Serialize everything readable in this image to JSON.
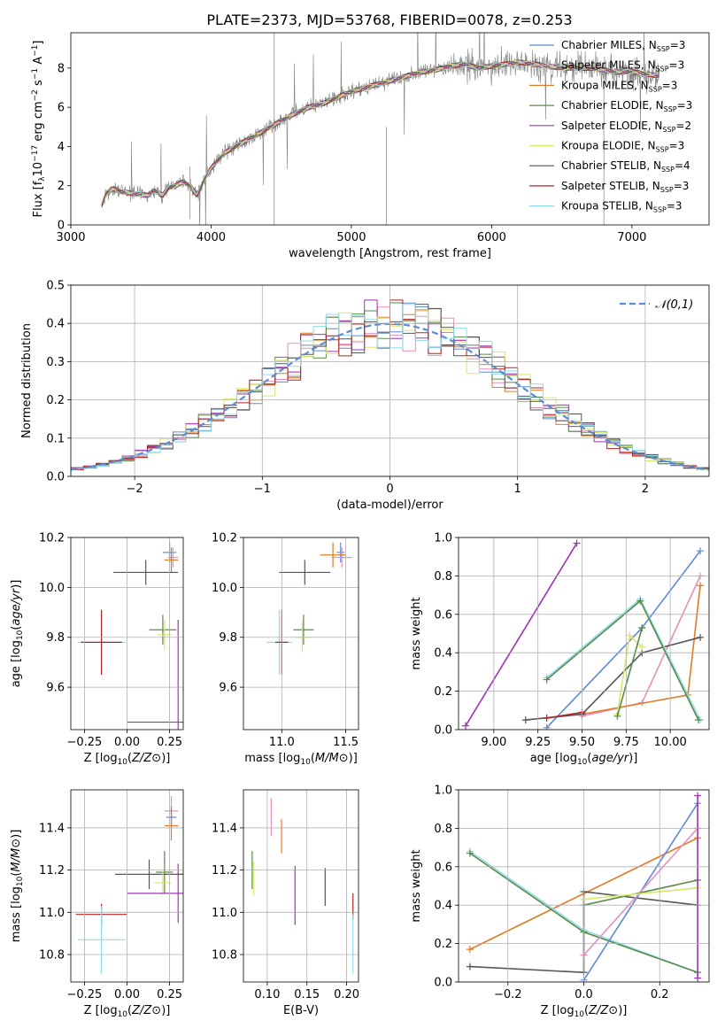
{
  "figure_title": "PLATE=2373, MJD=53768, FIBERID=0078, z=0.253",
  "series_colors": {
    "Chabrier MILES": "#5b8bd5",
    "Salpeter MILES": "#e68fbf",
    "Kroupa MILES": "#e07b27",
    "Chabrier ELODIE": "#5a8a4a",
    "Salpeter ELODIE": "#9b35b0",
    "Kroupa ELODIE": "#d7e86a",
    "Chabrier STELIB": "#555555",
    "Salpeter STELIB": "#b22222",
    "Kroupa STELIB": "#8fdde6"
  },
  "chart_data": [
    {
      "id": "spectrum",
      "type": "line",
      "title": "PLATE=2373, MJD=53768, FIBERID=0078, z=0.253",
      "xlabel": "wavelength [Angstrom, rest frame]",
      "ylabel": "Flux [f_λ 10^-17 erg cm^-2 s^-1 A^-1]",
      "xlim": [
        3000,
        7550
      ],
      "ylim": [
        0,
        9.8
      ],
      "xticks": [
        "3000",
        "4000",
        "5000",
        "6000",
        "7000"
      ],
      "yticks": [
        "0",
        "2",
        "4",
        "6",
        "8"
      ],
      "grid": false,
      "legend_position": "top-right",
      "data_color": "#808080",
      "data_label": "",
      "data": [
        [
          3220,
          1.0
        ],
        [
          3250,
          1.6
        ],
        [
          3300,
          1.85
        ],
        [
          3350,
          1.7
        ],
        [
          3400,
          1.65
        ],
        [
          3450,
          1.6
        ],
        [
          3500,
          1.55
        ],
        [
          3550,
          1.5
        ],
        [
          3600,
          1.8
        ],
        [
          3650,
          1.5
        ],
        [
          3700,
          1.9
        ],
        [
          3750,
          2.0
        ],
        [
          3800,
          2.2
        ],
        [
          3850,
          2.0
        ],
        [
          3900,
          1.5
        ],
        [
          3950,
          2.3
        ],
        [
          4000,
          2.9
        ],
        [
          4050,
          3.3
        ],
        [
          4100,
          3.7
        ],
        [
          4200,
          4.1
        ],
        [
          4300,
          4.5
        ],
        [
          4400,
          4.9
        ],
        [
          4500,
          5.3
        ],
        [
          4600,
          5.7
        ],
        [
          4700,
          6.0
        ],
        [
          4800,
          6.2
        ],
        [
          4900,
          6.5
        ],
        [
          5000,
          6.8
        ],
        [
          5100,
          7.0
        ],
        [
          5200,
          7.2
        ],
        [
          5300,
          7.4
        ],
        [
          5400,
          7.6
        ],
        [
          5500,
          7.8
        ],
        [
          5600,
          7.9
        ],
        [
          5700,
          8.1
        ],
        [
          5800,
          8.2
        ],
        [
          5900,
          8.0
        ],
        [
          6000,
          8.1
        ],
        [
          6100,
          8.2
        ],
        [
          6200,
          8.3
        ],
        [
          6300,
          8.2
        ],
        [
          6400,
          8.1
        ],
        [
          6500,
          8.0
        ],
        [
          6600,
          8.0
        ],
        [
          6700,
          8.0
        ],
        [
          6800,
          7.9
        ],
        [
          6900,
          7.8
        ],
        [
          7000,
          7.8
        ],
        [
          7100,
          7.7
        ],
        [
          7200,
          7.6
        ]
      ],
      "legend": [
        {
          "label": "Chabrier MILES, N_SSP=3",
          "text": "Chabrier MILES, N",
          "sub": "SSP",
          "tail": "=3"
        },
        {
          "label": "Salpeter MILES, N_SSP=3",
          "text": "Salpeter MILES, N",
          "sub": "SSP",
          "tail": "=3"
        },
        {
          "label": "Kroupa MILES, N_SSP=3",
          "text": "Kroupa MILES, N",
          "sub": "SSP",
          "tail": "=3"
        },
        {
          "label": "Chabrier ELODIE, N_SSP=3",
          "text": "Chabrier ELODIE, N",
          "sub": "SSP",
          "tail": "=3"
        },
        {
          "label": "Salpeter ELODIE, N_SSP=2",
          "text": "Salpeter ELODIE, N",
          "sub": "SSP",
          "tail": "=2"
        },
        {
          "label": "Kroupa ELODIE, N_SSP=3",
          "text": "Kroupa ELODIE, N",
          "sub": "SSP",
          "tail": "=3"
        },
        {
          "label": "Chabrier STELIB, N_SSP=4",
          "text": "Chabrier STELIB, N",
          "sub": "SSP",
          "tail": "=4"
        },
        {
          "label": "Salpeter STELIB, N_SSP=3",
          "text": "Salpeter STELIB, N",
          "sub": "SSP",
          "tail": "=3"
        },
        {
          "label": "Kroupa STELIB, N_SSP=3",
          "text": "Kroupa STELIB, N",
          "sub": "SSP",
          "tail": "=3"
        }
      ]
    },
    {
      "id": "residuals",
      "type": "histogram",
      "xlabel": "(data-model)/error",
      "ylabel": "Normed distribution",
      "xlim": [
        -2.5,
        2.5
      ],
      "ylim": [
        0,
        0.5
      ],
      "xticks": [
        "−2",
        "−1",
        "0",
        "1",
        "2"
      ],
      "yticks": [
        "0.0",
        "0.1",
        "0.2",
        "0.3",
        "0.4",
        "0.5"
      ],
      "grid": true,
      "legend_position": "top-right",
      "reference_label": "𝒩(0,1)",
      "reference_color": "#5b8bd5"
    },
    {
      "id": "age-vs-Z",
      "type": "errorbar",
      "xlabel": "Z [log10(Z/Z⊙)]",
      "ylabel": "age [log10(age/yr)]",
      "xlim": [
        -0.33,
        0.33
      ],
      "ylim": [
        9.43,
        10.2
      ],
      "xticks": [
        "−0.25",
        "0.00",
        "0.25"
      ],
      "yticks": [
        "9.6",
        "9.8",
        "10.0",
        "10.2"
      ],
      "grid": true,
      "points": [
        {
          "series": "Chabrier MILES",
          "x": 0.25,
          "y": 10.14,
          "xerr": 0.04,
          "yerr": 0.04
        },
        {
          "series": "Salpeter MILES",
          "x": 0.27,
          "y": 10.12,
          "xerr": 0.03,
          "yerr": 0.04
        },
        {
          "series": "Kroupa MILES",
          "x": 0.26,
          "y": 10.11,
          "xerr": 0.04,
          "yerr": 0.05
        },
        {
          "series": "Chabrier STELIB",
          "x": 0.11,
          "y": 10.06,
          "xerr": 0.19,
          "yerr": 0.05
        },
        {
          "series": "Chabrier ELODIE",
          "x": 0.21,
          "y": 9.83,
          "xerr": 0.08,
          "yerr": 0.06
        },
        {
          "series": "Kroupa ELODIE",
          "x": 0.22,
          "y": 9.81,
          "xerr": 0.04,
          "yerr": 0.06
        },
        {
          "series": "Kroupa STELIB",
          "x": -0.15,
          "y": 9.78,
          "xerr": 0.14,
          "yerr": 0.13
        },
        {
          "series": "Salpeter STELIB",
          "x": -0.15,
          "y": 9.78,
          "xerr": 0.12,
          "yerr": 0.13
        },
        {
          "series": "Salpeter ELODIE",
          "x": 0.3,
          "y": 9.46,
          "xerr": 0.3,
          "yerr": 0.41
        }
      ]
    },
    {
      "id": "age-vs-mass",
      "type": "errorbar",
      "xlabel": "mass [log10(M/M⊙)]",
      "ylabel": "",
      "xlim": [
        10.7,
        11.6
      ],
      "ylim": [
        9.43,
        10.2
      ],
      "xticks": [
        "11.0",
        "11.5"
      ],
      "yticks": [
        "9.6",
        "9.8",
        "10.0",
        "10.2"
      ],
      "grid": true,
      "points": [
        {
          "series": "Chabrier MILES",
          "x": 11.46,
          "y": 10.14,
          "xerr": 0.03,
          "yerr": 0.04
        },
        {
          "series": "Salpeter MILES",
          "x": 11.47,
          "y": 10.12,
          "xerr": 0.08,
          "yerr": 0.04
        },
        {
          "series": "Kroupa MILES",
          "x": 11.4,
          "y": 10.13,
          "xerr": 0.1,
          "yerr": 0.05
        },
        {
          "series": "Chabrier STELIB",
          "x": 11.18,
          "y": 10.06,
          "xerr": 0.2,
          "yerr": 0.05
        },
        {
          "series": "Chabrier ELODIE",
          "x": 11.17,
          "y": 9.83,
          "xerr": 0.08,
          "yerr": 0.06
        },
        {
          "series": "Kroupa ELODIE",
          "x": 11.16,
          "y": 9.8,
          "xerr": 0.06,
          "yerr": 0.06
        },
        {
          "series": "Kroupa STELIB",
          "x": 10.98,
          "y": 9.78,
          "xerr": 0.1,
          "yerr": 0.13
        },
        {
          "series": "Salpeter STELIB",
          "x": 11.0,
          "y": 9.78,
          "xerr": 0.05,
          "yerr": 0.13
        }
      ]
    },
    {
      "id": "weight-vs-age",
      "type": "line",
      "xlabel": "age [log10(age/yr)]",
      "ylabel": "mass weight",
      "xlim": [
        8.8,
        10.22
      ],
      "ylim": [
        0,
        1.0
      ],
      "xticks": [
        "9.00",
        "9.25",
        "9.50",
        "9.75",
        "10.00"
      ],
      "yticks": [
        "0.0",
        "0.2",
        "0.4",
        "0.6",
        "0.8",
        "1.0"
      ],
      "grid": true,
      "series": [
        {
          "name": "Salpeter ELODIE",
          "points": [
            [
              8.84,
              0.02
            ],
            [
              9.47,
              0.97
            ]
          ]
        },
        {
          "name": "Chabrier MILES",
          "points": [
            [
              9.3,
              0.01
            ],
            [
              9.84,
              0.53
            ],
            [
              10.17,
              0.93
            ]
          ]
        },
        {
          "name": "Salpeter MILES",
          "points": [
            [
              9.5,
              0.07
            ],
            [
              9.84,
              0.14
            ],
            [
              10.17,
              0.8
            ]
          ]
        },
        {
          "name": "Kroupa MILES",
          "points": [
            [
              9.5,
              0.08
            ],
            [
              10.1,
              0.18
            ],
            [
              10.17,
              0.75
            ]
          ]
        },
        {
          "name": "Chabrier STELIB",
          "points": [
            [
              9.18,
              0.05
            ],
            [
              9.5,
              0.08
            ],
            [
              9.84,
              0.4
            ],
            [
              10.17,
              0.48
            ]
          ]
        },
        {
          "name": "Salpeter STELIB",
          "points": [
            [
              9.3,
              0.06
            ],
            [
              9.5,
              0.09
            ]
          ]
        },
        {
          "name": "Kroupa STELIB",
          "points": [
            [
              9.3,
              0.27
            ],
            [
              9.83,
              0.68
            ],
            [
              10.17,
              0.05
            ]
          ]
        },
        {
          "name": "Chabrier ELODIE",
          "points": [
            [
              9.3,
              0.26
            ],
            [
              9.83,
              0.67
            ],
            [
              10.16,
              0.05
            ]
          ]
        },
        {
          "name": "Kroupa ELODIE",
          "points": [
            [
              9.7,
              0.08
            ],
            [
              9.77,
              0.49
            ],
            [
              9.84,
              0.43
            ]
          ]
        },
        {
          "name": "Chabrier ELODIE",
          "points": [
            [
              9.7,
              0.07
            ],
            [
              9.84,
              0.53
            ]
          ]
        }
      ]
    },
    {
      "id": "mass-vs-Z",
      "type": "errorbar",
      "xlabel": "Z [log10(Z/Z⊙)]",
      "ylabel": "mass [log10(M/M⊙)]",
      "xlim": [
        -0.33,
        0.33
      ],
      "ylim": [
        10.67,
        11.58
      ],
      "xticks": [
        "−0.25",
        "0.00",
        "0.25"
      ],
      "yticks": [
        "10.8",
        "11.0",
        "11.2",
        "11.4"
      ],
      "grid": true,
      "points": [
        {
          "series": "Salpeter MILES",
          "x": 0.26,
          "y": 11.48,
          "xerr": 0.04,
          "yerr": 0.07
        },
        {
          "series": "Chabrier MILES",
          "x": 0.26,
          "y": 11.45,
          "xerr": 0.03,
          "yerr": 0.05
        },
        {
          "series": "Kroupa MILES",
          "x": 0.26,
          "y": 11.41,
          "xerr": 0.04,
          "yerr": 0.07
        },
        {
          "series": "Chabrier ELODIE",
          "x": 0.22,
          "y": 11.19,
          "xerr": 0.05,
          "yerr": 0.1
        },
        {
          "series": "Chabrier STELIB",
          "x": 0.13,
          "y": 11.18,
          "xerr": 0.2,
          "yerr": 0.07
        },
        {
          "series": "Kroupa ELODIE",
          "x": 0.21,
          "y": 11.14,
          "xerr": 0.05,
          "yerr": 0.06
        },
        {
          "series": "Salpeter ELODIE",
          "x": 0.3,
          "y": 11.09,
          "xerr": 0.3,
          "yerr": 0.14
        },
        {
          "series": "Salpeter STELIB",
          "x": -0.15,
          "y": 10.99,
          "xerr": 0.15,
          "yerr": 0.05
        },
        {
          "series": "Kroupa STELIB",
          "x": -0.15,
          "y": 10.87,
          "xerr": 0.14,
          "yerr": 0.16
        }
      ]
    },
    {
      "id": "mass-vs-ebv",
      "type": "errorbar",
      "xlabel": "E(B-V)",
      "ylabel": "",
      "xlim": [
        0.07,
        0.215
      ],
      "ylim": [
        10.67,
        11.58
      ],
      "xticks": [
        "0.10",
        "0.15",
        "0.20"
      ],
      "yticks": [
        "10.8",
        "11.0",
        "11.2",
        "11.4"
      ],
      "grid": true,
      "points": [
        {
          "series": "Salpeter MILES",
          "x": 0.105,
          "y": 11.45,
          "xerr": 0,
          "yerr": 0.09
        },
        {
          "series": "Kroupa MILES",
          "x": 0.118,
          "y": 11.36,
          "xerr": 0,
          "yerr": 0.08
        },
        {
          "series": "Chabrier ELODIE",
          "x": 0.081,
          "y": 11.2,
          "xerr": 0,
          "yerr": 0.09
        },
        {
          "series": "Kroupa ELODIE",
          "x": 0.083,
          "y": 11.16,
          "xerr": 0,
          "yerr": 0.08
        },
        {
          "series": "Salpeter ELODIE",
          "x": 0.135,
          "y": 11.08,
          "xerr": 0,
          "yerr": 0.14
        },
        {
          "series": "Chabrier STELIB",
          "x": 0.173,
          "y": 11.12,
          "xerr": 0,
          "yerr": 0.09
        },
        {
          "series": "Salpeter STELIB",
          "x": 0.208,
          "y": 11.03,
          "xerr": 0,
          "yerr": 0.06
        },
        {
          "series": "Kroupa STELIB",
          "x": 0.208,
          "y": 10.85,
          "xerr": 0,
          "yerr": 0.14
        }
      ]
    },
    {
      "id": "weight-vs-Z",
      "type": "line",
      "xlabel": "Z [log10(Z/Z⊙)]",
      "ylabel": "mass weight",
      "xlim": [
        -0.33,
        0.33
      ],
      "ylim": [
        0,
        1.0
      ],
      "xticks": [
        "−0.2",
        "0.0",
        "0.2"
      ],
      "yticks": [
        "0.0",
        "0.2",
        "0.4",
        "0.6",
        "0.8",
        "1.0"
      ],
      "grid": true,
      "series": [
        {
          "name": "Kroupa MILES",
          "points": [
            [
              -0.3,
              0.17
            ],
            [
              0.3,
              0.75
            ]
          ]
        },
        {
          "name": "Chabrier STELIB",
          "points": [
            [
              -0.3,
              0.08
            ],
            [
              0.0,
              0.05
            ],
            [
              0.0,
              0.47
            ],
            [
              0.3,
              0.4
            ]
          ]
        },
        {
          "name": "Kroupa STELIB",
          "points": [
            [
              -0.3,
              0.68
            ],
            [
              0.0,
              0.27
            ],
            [
              0.3,
              0.05
            ]
          ]
        },
        {
          "name": "Chabrier ELODIE",
          "points": [
            [
              -0.3,
              0.67
            ],
            [
              0.0,
              0.26
            ],
            [
              0.3,
              0.05
            ]
          ]
        },
        {
          "name": "Chabrier MILES",
          "points": [
            [
              0.0,
              0.01
            ],
            [
              0.3,
              0.93
            ]
          ]
        },
        {
          "name": "Salpeter MILES",
          "points": [
            [
              0.0,
              0.14
            ],
            [
              0.3,
              0.8
            ]
          ]
        },
        {
          "name": "Chabrier ELODIE",
          "points": [
            [
              0.0,
              0.4
            ],
            [
              0.3,
              0.53
            ]
          ]
        },
        {
          "name": "Kroupa ELODIE",
          "points": [
            [
              0.0,
              0.43
            ],
            [
              0.3,
              0.49
            ]
          ]
        },
        {
          "name": "Salpeter ELODIE",
          "points": [
            [
              0.3,
              0.02
            ],
            [
              0.3,
              0.97
            ]
          ]
        }
      ]
    }
  ]
}
